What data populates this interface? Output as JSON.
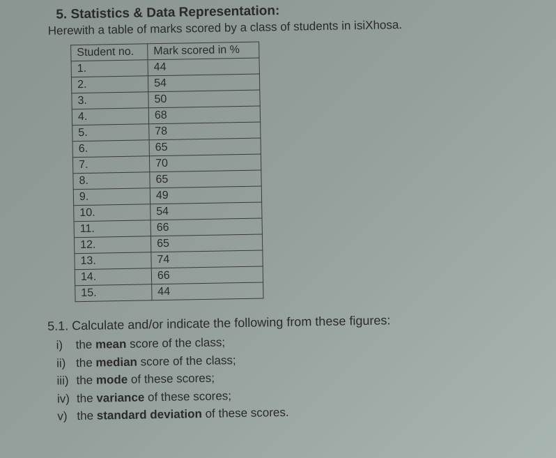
{
  "heading_prefix": "5.",
  "heading_text": "Statistics & Data Representation:",
  "subheading": "Herewith a table of marks scored by a class of students in isiXhosa.",
  "table": {
    "header_col1": "Student no.",
    "header_col2": "Mark  scored  in %",
    "rows": [
      {
        "num": "1.",
        "mark": "44"
      },
      {
        "num": "2.",
        "mark": "54"
      },
      {
        "num": "3.",
        "mark": "50"
      },
      {
        "num": "4.",
        "mark": "68"
      },
      {
        "num": "5.",
        "mark": "78"
      },
      {
        "num": "6.",
        "mark": "65"
      },
      {
        "num": "7.",
        "mark": "70"
      },
      {
        "num": "8.",
        "mark": "65"
      },
      {
        "num": "9.",
        "mark": "49"
      },
      {
        "num": "10.",
        "mark": "54"
      },
      {
        "num": "11.",
        "mark": "66"
      },
      {
        "num": "12.",
        "mark": "65"
      },
      {
        "num": "13.",
        "mark": "74"
      },
      {
        "num": "14.",
        "mark": "66"
      },
      {
        "num": "15.",
        "mark": "44"
      }
    ]
  },
  "q_heading": "5.1. Calculate and/or indicate the following from these figures:",
  "questions": [
    {
      "roman": "i)",
      "pre": "the ",
      "bold": "mean",
      "post": " score of the class;"
    },
    {
      "roman": "ii)",
      "pre": "the ",
      "bold": "median",
      "post": " score of the class;"
    },
    {
      "roman": "iii)",
      "pre": "the ",
      "bold": "mode",
      "post": " of these scores;"
    },
    {
      "roman": "iv)",
      "pre": "the ",
      "bold": "variance",
      "post": " of these scores;"
    },
    {
      "roman": "v)",
      "pre": "the ",
      "bold": "standard deviation",
      "post": " of these scores."
    }
  ],
  "colors": {
    "text": "#2a2a2a",
    "border": "#3a3a3a",
    "bg_light": "#a8b5b0",
    "bg_dark": "#8a9490"
  }
}
